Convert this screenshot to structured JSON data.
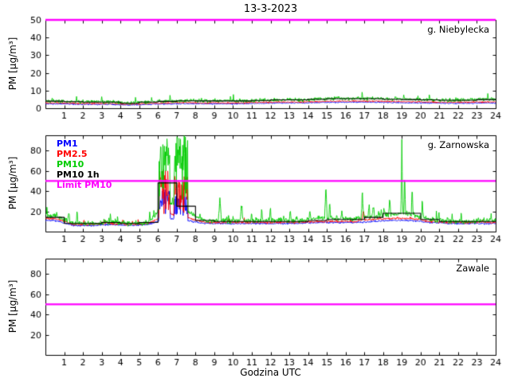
{
  "chart_data": {
    "type": "line",
    "title": "13-3-2023",
    "xlabel": "Godzina UTC",
    "ylabel": "PM [µg/m³]",
    "xlim": [
      0,
      24
    ],
    "x_ticks": [
      1,
      2,
      3,
      4,
      5,
      6,
      7,
      8,
      9,
      10,
      11,
      12,
      13,
      14,
      15,
      16,
      17,
      18,
      19,
      20,
      21,
      22,
      23,
      24
    ],
    "limit_value": 50,
    "legend": [
      {
        "key": "pm1",
        "label": "PM1",
        "color": "#0000ff"
      },
      {
        "key": "pm25",
        "label": "PM2.5",
        "color": "#ff0000"
      },
      {
        "key": "pm10",
        "label": "PM10",
        "color": "#00cc00"
      },
      {
        "key": "pm10_1h",
        "label": "PM10 1h",
        "color": "#000000"
      },
      {
        "key": "limit",
        "label": "Limit PM10",
        "color": "#ff00ff"
      }
    ],
    "panels": [
      {
        "station": "g. Niebylecka",
        "ylim": [
          0,
          50
        ],
        "yticks": [
          0,
          10,
          20,
          30,
          40,
          50
        ],
        "limit": 50,
        "hourly": {
          "pm1": [
            2.5,
            2.3,
            2.2,
            2.2,
            1.8,
            2.2,
            2.4,
            2.6,
            2.5,
            2.5,
            2.5,
            2.8,
            3.0,
            3.0,
            3.2,
            3.4,
            3.4,
            3.4,
            3.2,
            3.0,
            3.0,
            2.8,
            2.8,
            3.0
          ],
          "pm25": [
            3.0,
            2.8,
            2.7,
            2.7,
            2.2,
            2.7,
            3.0,
            3.2,
            3.0,
            3.0,
            3.0,
            3.3,
            3.5,
            3.5,
            3.8,
            4.0,
            4.0,
            4.0,
            3.8,
            3.6,
            3.5,
            3.4,
            3.4,
            3.6
          ],
          "pm10": [
            4.2,
            3.8,
            3.6,
            3.6,
            2.8,
            3.6,
            4.0,
            4.3,
            4.2,
            4.2,
            4.2,
            4.5,
            4.8,
            4.8,
            5.2,
            5.6,
            5.6,
            5.6,
            5.2,
            5.0,
            4.8,
            4.6,
            4.6,
            5.0
          ],
          "pm10_1h": [
            4.0,
            3.7,
            3.5,
            3.5,
            2.8,
            3.5,
            3.9,
            4.2,
            4.1,
            4.1,
            4.1,
            4.4,
            4.7,
            4.7,
            5.1,
            5.4,
            5.4,
            5.4,
            5.1,
            4.9,
            4.7,
            4.5,
            4.5,
            4.9
          ]
        },
        "noise": {
          "pm1": 0.35,
          "pm25": 0.4,
          "pm10": 0.9
        },
        "grass": {
          "pm10": {
            "prob": 0.02,
            "amp": 2.5
          }
        },
        "bursts": [],
        "spikes": []
      },
      {
        "station": "g. Zarnowska",
        "ylim": [
          0,
          95
        ],
        "yticks": [
          20,
          40,
          60,
          80
        ],
        "limit": 50,
        "hourly": {
          "pm1": [
            11,
            6,
            6,
            7,
            6,
            7,
            13,
            11,
            8,
            8,
            8,
            8,
            8,
            8,
            9,
            9,
            9,
            10,
            11,
            11,
            9,
            8,
            8,
            8
          ],
          "pm25": [
            13,
            7,
            7,
            8,
            7,
            8,
            18,
            14,
            9,
            9,
            9,
            9,
            9,
            9,
            10,
            10,
            10,
            12,
            13,
            13,
            10,
            9,
            9,
            9
          ],
          "pm10": [
            16,
            8,
            8,
            9,
            8,
            9,
            30,
            20,
            11,
            11,
            11,
            11,
            11,
            11,
            13,
            13,
            13,
            15,
            17,
            17,
            12,
            10,
            10,
            11
          ],
          "pm10_1h": [
            14,
            8,
            8,
            9,
            8,
            9,
            48,
            25,
            11,
            10,
            10,
            10,
            10,
            10,
            11,
            12,
            12,
            14,
            18,
            18,
            12,
            10,
            10,
            10
          ]
        },
        "noise": {
          "pm1": 0.8,
          "pm25": 1.0,
          "pm10": 2.2
        },
        "grass": {
          "pm10": {
            "prob": 0.04,
            "amp": 6
          },
          "pm25": {
            "prob": 0.012,
            "amp": 3
          }
        },
        "bursts": [
          {
            "series": "pm10",
            "t1": 6.05,
            "t2": 6.65,
            "peak": 95
          },
          {
            "series": "pm10",
            "t1": 6.85,
            "t2": 7.6,
            "peak": 95
          },
          {
            "series": "pm25",
            "t1": 6.05,
            "t2": 6.65,
            "peak": 62
          },
          {
            "series": "pm25",
            "t1": 6.85,
            "t2": 7.6,
            "peak": 55
          },
          {
            "series": "pm1",
            "t1": 6.05,
            "t2": 6.65,
            "peak": 42
          },
          {
            "series": "pm1",
            "t1": 6.85,
            "t2": 7.6,
            "peak": 38
          }
        ],
        "spikes": [
          {
            "series": "pm10",
            "t": 9.3,
            "amp": 22,
            "w": 0.08
          },
          {
            "series": "pm10",
            "t": 10.45,
            "amp": 14,
            "w": 0.06
          },
          {
            "series": "pm10",
            "t": 12.0,
            "amp": 8,
            "w": 0.05
          },
          {
            "series": "pm10",
            "t": 13.05,
            "amp": 10,
            "w": 0.05
          },
          {
            "series": "pm10",
            "t": 14.1,
            "amp": 8,
            "w": 0.05
          },
          {
            "series": "pm10",
            "t": 14.95,
            "amp": 32,
            "w": 0.07
          },
          {
            "series": "pm10",
            "t": 15.15,
            "amp": 18,
            "w": 0.05
          },
          {
            "series": "pm10",
            "t": 16.9,
            "amp": 20,
            "w": 0.07
          },
          {
            "series": "pm25",
            "t": 16.95,
            "amp": 10,
            "w": 0.08
          },
          {
            "series": "pm10",
            "t": 17.25,
            "amp": 14,
            "w": 0.05
          },
          {
            "series": "pm10",
            "t": 18.35,
            "amp": 16,
            "w": 0.06
          },
          {
            "series": "pm10",
            "t": 19.0,
            "amp": 73,
            "w": 0.05
          },
          {
            "series": "pm10",
            "t": 19.15,
            "amp": 40,
            "w": 0.05
          },
          {
            "series": "pm10",
            "t": 19.55,
            "amp": 28,
            "w": 0.05
          },
          {
            "series": "pm10",
            "t": 20.1,
            "amp": 10,
            "w": 0.05
          }
        ]
      },
      {
        "station": "Zawale",
        "ylim": [
          0,
          95
        ],
        "yticks": [
          20,
          40,
          60,
          80
        ],
        "limit": 50,
        "no_data": true
      }
    ]
  }
}
